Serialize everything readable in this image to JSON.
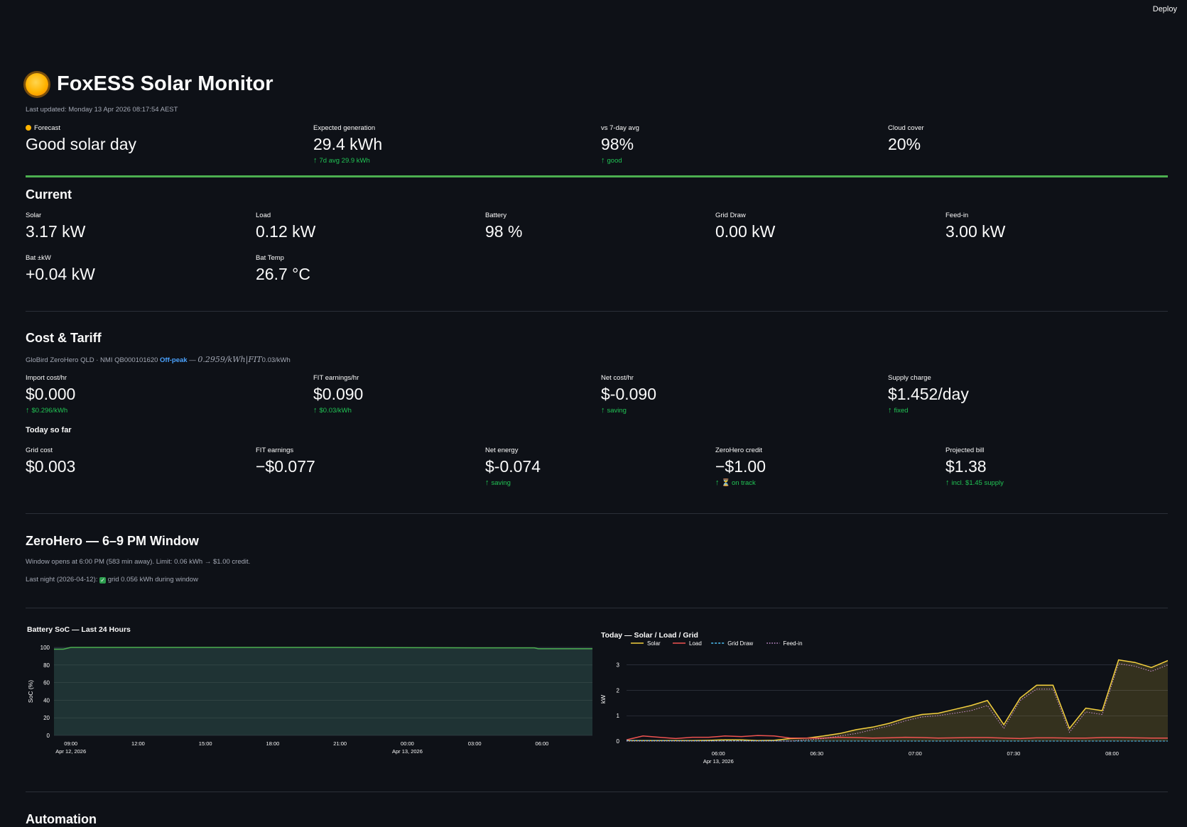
{
  "header": {
    "deploy_label": "Deploy"
  },
  "app": {
    "title": "FoxESS Solar Monitor",
    "last_updated": "Last updated: Monday 13 Apr 2026 08:17:54 AEST"
  },
  "forecast": [
    {
      "label": "Forecast",
      "value": "Good solar day",
      "delta": ""
    },
    {
      "label": "Expected generation",
      "value": "29.4 kWh",
      "delta": "7d avg 29.9 kWh"
    },
    {
      "label": "vs 7-day avg",
      "value": "98%",
      "delta": "good"
    },
    {
      "label": "Cloud cover",
      "value": "20%",
      "delta": ""
    }
  ],
  "current": {
    "heading": "Current",
    "metrics": [
      {
        "label": "Solar",
        "value": "3.17 kW"
      },
      {
        "label": "Load",
        "value": "0.12 kW"
      },
      {
        "label": "Battery",
        "value": "98 %"
      },
      {
        "label": "Grid Draw",
        "value": "0.00 kW"
      },
      {
        "label": "Feed-in",
        "value": "3.00 kW"
      },
      {
        "label": "Bat ±kW",
        "value": "+0.04 kW"
      },
      {
        "label": "Bat Temp",
        "value": "26.7 °C"
      }
    ]
  },
  "cost": {
    "heading": "Cost & Tariff",
    "tariff_prefix": "GloBird ZeroHero QLD · NMI QB000101620",
    "tariff_period": "Off-peak",
    "tariff_dash": " — ",
    "tariff_formula": "0.2959/kWh|FIT",
    "tariff_suffix": "0.03/kWh",
    "hourly": [
      {
        "label": "Import cost/hr",
        "value": "$0.000",
        "delta": "$0.296/kWh"
      },
      {
        "label": "FIT earnings/hr",
        "value": "$0.090",
        "delta": "$0.03/kWh"
      },
      {
        "label": "Net cost/hr",
        "value": "$-0.090",
        "delta": "saving"
      },
      {
        "label": "Supply charge",
        "value": "$1.452/day",
        "delta": "fixed"
      }
    ],
    "today_heading": "Today so far",
    "today": [
      {
        "label": "Grid cost",
        "value": "$0.003",
        "delta": ""
      },
      {
        "label": "FIT earnings",
        "value": "−$0.077",
        "delta": ""
      },
      {
        "label": "Net energy",
        "value": "$-0.074",
        "delta": "saving"
      },
      {
        "label": "ZeroHero credit",
        "value": "−$1.00",
        "delta": "on track"
      },
      {
        "label": "Projected bill",
        "value": "$1.38",
        "delta": "incl. $1.45 supply"
      }
    ]
  },
  "zerohero": {
    "heading": "ZeroHero — 6–9 PM Window",
    "window_text": "Window opens at 6:00 PM (583 min away). Limit: 0.06 kWh → $1.00 credit.",
    "last_night_prefix": "Last night (2026-04-12):",
    "last_night_suffix": "grid 0.056 kWh during window"
  },
  "automation": {
    "heading": "Automation"
  },
  "colors": {
    "solar": "#f4d03f",
    "load": "#ef5350",
    "grid": "#4fc3f7",
    "feedin": "#ce93d8",
    "soc": "#4caf50",
    "accent": "#21c354"
  },
  "chart_data": [
    {
      "type": "area",
      "title": "Battery SoC — Last 24 Hours",
      "ylabel": "SoC (%)",
      "xlabel": "",
      "ylim": [
        0,
        100
      ],
      "y_ticks": [
        0,
        20,
        40,
        60,
        80,
        100
      ],
      "x_range": [
        "2026-04-12 08:15",
        "2026-04-13 08:15"
      ],
      "x_ticks": [
        {
          "t": "2026-04-12 09:00",
          "label": "09:00",
          "sub": "Apr 12, 2026"
        },
        {
          "t": "2026-04-12 12:00",
          "label": "12:00",
          "sub": ""
        },
        {
          "t": "2026-04-12 15:00",
          "label": "15:00",
          "sub": ""
        },
        {
          "t": "2026-04-12 18:00",
          "label": "18:00",
          "sub": ""
        },
        {
          "t": "2026-04-12 21:00",
          "label": "21:00",
          "sub": ""
        },
        {
          "t": "2026-04-13 00:00",
          "label": "00:00",
          "sub": "Apr 13, 2026"
        },
        {
          "t": "2026-04-13 03:00",
          "label": "03:00",
          "sub": ""
        },
        {
          "t": "2026-04-13 06:00",
          "label": "06:00",
          "sub": ""
        }
      ],
      "series": [
        {
          "values": [
            {
              "x": "2026-04-12 08:15",
              "y": 98
            },
            {
              "x": "2026-04-12 08:40",
              "y": 98
            },
            {
              "x": "2026-04-12 09:00",
              "y": 100
            },
            {
              "x": "2026-04-12 21:00",
              "y": 100
            },
            {
              "x": "2026-04-13 03:00",
              "y": 99.5
            },
            {
              "x": "2026-04-13 05:40",
              "y": 99.5
            },
            {
              "x": "2026-04-13 05:50",
              "y": 98.5
            },
            {
              "x": "2026-04-13 08:15",
              "y": 98.5
            }
          ]
        }
      ]
    },
    {
      "type": "line",
      "title": "Today — Solar / Load / Grid",
      "ylabel": "kW",
      "xlabel": "",
      "ylim": [
        0,
        3.3
      ],
      "y_ticks": [
        0,
        1,
        2,
        3
      ],
      "legend": "top-left",
      "x_range": [
        "05:32",
        "08:17"
      ],
      "x_ticks": [
        {
          "t": "06:00",
          "label": "06:00",
          "sub": "Apr 13, 2026"
        },
        {
          "t": "06:30",
          "label": "06:30",
          "sub": ""
        },
        {
          "t": "07:00",
          "label": "07:00",
          "sub": ""
        },
        {
          "t": "07:30",
          "label": "07:30",
          "sub": ""
        },
        {
          "t": "08:00",
          "label": "08:00",
          "sub": ""
        }
      ],
      "x": [
        "05:32",
        "05:37",
        "05:42",
        "05:47",
        "05:52",
        "05:57",
        "06:02",
        "06:07",
        "06:12",
        "06:17",
        "06:22",
        "06:27",
        "06:32",
        "06:37",
        "06:42",
        "06:47",
        "06:52",
        "06:57",
        "07:02",
        "07:07",
        "07:12",
        "07:17",
        "07:22",
        "07:27",
        "07:32",
        "07:37",
        "07:42",
        "07:47",
        "07:52",
        "07:57",
        "08:02",
        "08:07",
        "08:12",
        "08:17"
      ],
      "series": [
        {
          "name": "Solar",
          "style": "solid",
          "fill": true,
          "values": [
            0.02,
            0.02,
            0.02,
            0.02,
            0.02,
            0.03,
            0.05,
            0.05,
            0.02,
            0.03,
            0.1,
            0.12,
            0.2,
            0.3,
            0.45,
            0.55,
            0.7,
            0.9,
            1.05,
            1.1,
            1.25,
            1.4,
            1.6,
            0.65,
            1.7,
            2.2,
            2.2,
            0.5,
            1.3,
            1.2,
            3.2,
            3.1,
            2.9,
            3.17
          ]
        },
        {
          "name": "Load",
          "style": "solid",
          "fill": false,
          "values": [
            0.05,
            0.2,
            0.15,
            0.1,
            0.15,
            0.15,
            0.2,
            0.18,
            0.22,
            0.2,
            0.12,
            0.12,
            0.12,
            0.15,
            0.14,
            0.12,
            0.13,
            0.15,
            0.14,
            0.12,
            0.13,
            0.14,
            0.14,
            0.12,
            0.1,
            0.13,
            0.13,
            0.12,
            0.12,
            0.14,
            0.14,
            0.13,
            0.12,
            0.12
          ]
        },
        {
          "name": "Grid Draw",
          "style": "dash",
          "fill": false,
          "values": [
            0.03,
            0.02,
            0.02,
            0.01,
            0.01,
            0.01,
            0.01,
            0.01,
            0.01,
            0.01,
            0,
            0,
            0,
            0,
            0,
            0,
            0,
            0,
            0,
            0,
            0,
            0,
            0,
            0,
            0,
            0,
            0,
            0,
            0,
            0,
            0,
            0,
            0,
            0
          ]
        },
        {
          "name": "Feed-in",
          "style": "dot",
          "fill": false,
          "values": [
            0,
            0,
            0,
            0,
            0,
            0,
            0,
            0,
            0,
            0,
            0,
            0.05,
            0.1,
            0.2,
            0.3,
            0.45,
            0.6,
            0.8,
            0.95,
            1.0,
            1.1,
            1.2,
            1.4,
            0.5,
            1.6,
            2.05,
            2.05,
            0.35,
            1.15,
            1.05,
            3.05,
            2.95,
            2.75,
            3.0
          ]
        }
      ]
    }
  ]
}
